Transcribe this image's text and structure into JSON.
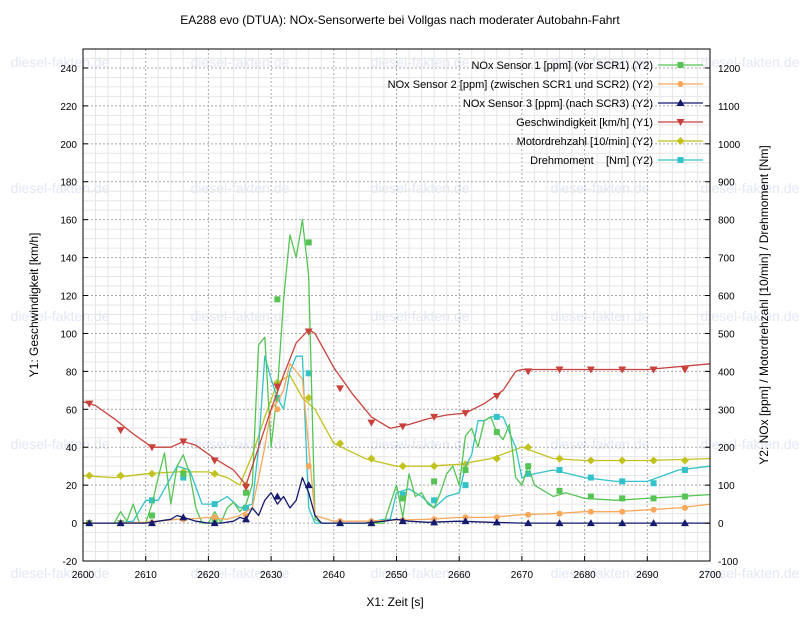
{
  "chart_data": {
    "type": "line",
    "title": "EA288 evo (DTUA): NOx-Sensorwerte bei Vollgas nach moderater Autobahn-Fahrt",
    "xlabel": "X1: Zeit [s]",
    "ylabel": "Y1: Geschwindigkeit [km/h]",
    "y2label": "Y2: NOx [ppm] / Motordrehzahl [10/min] / Drehmoment [Nm]",
    "xlim": [
      2600,
      2700
    ],
    "ylim": [
      -20,
      250
    ],
    "y2lim": [
      -100,
      1250
    ],
    "xticks": [
      "2600",
      "2610",
      "2620",
      "2630",
      "2640",
      "2650",
      "2660",
      "2670",
      "2680",
      "2690",
      "2700"
    ],
    "yticks": [
      "-20",
      "0",
      "20",
      "40",
      "60",
      "80",
      "100",
      "120",
      "140",
      "160",
      "180",
      "200",
      "220",
      "240"
    ],
    "y2ticks": [
      "-100",
      "0",
      "100",
      "200",
      "300",
      "400",
      "500",
      "600",
      "700",
      "800",
      "900",
      "1000",
      "1100",
      "1200"
    ],
    "grid": true,
    "legend_position": "top-right",
    "watermark": "diesel-fakten.de",
    "series": [
      {
        "name": "NOx Sensor 1 [ppm] (vor SCR1) (Y2)",
        "axis": "y2",
        "color": "#55c455",
        "marker": "square",
        "x": [
          2600,
          2605,
          2606,
          2607,
          2608,
          2609,
          2610,
          2611,
          2612,
          2613,
          2614,
          2615,
          2616,
          2617,
          2618,
          2619,
          2620,
          2621,
          2622,
          2623,
          2624,
          2625,
          2626,
          2627,
          2628,
          2629,
          2630,
          2631,
          2632,
          2633,
          2634,
          2635,
          2636,
          2637,
          2638,
          2639,
          2640,
          2645,
          2648,
          2649,
          2650,
          2651,
          2652,
          2653,
          2654,
          2655,
          2656,
          2657,
          2658,
          2659,
          2660,
          2661,
          2662,
          2663,
          2664,
          2665,
          2666,
          2667,
          2668,
          2669,
          2670,
          2671,
          2672,
          2673,
          2675,
          2677,
          2680,
          2685,
          2690,
          2695,
          2700
        ],
        "y": [
          0,
          0,
          30,
          5,
          50,
          0,
          0,
          50,
          120,
          185,
          50,
          150,
          180,
          130,
          40,
          0,
          0,
          30,
          0,
          40,
          55,
          30,
          50,
          100,
          470,
          490,
          200,
          350,
          590,
          760,
          700,
          800,
          650,
          10,
          0,
          0,
          0,
          0,
          0,
          50,
          100,
          15,
          130,
          70,
          80,
          50,
          40,
          80,
          130,
          150,
          100,
          230,
          250,
          200,
          270,
          280,
          240,
          220,
          260,
          120,
          100,
          150,
          100,
          90,
          70,
          80,
          65,
          60,
          65,
          70,
          75
        ],
        "markers_x": [
          2601,
          2606,
          2611,
          2616,
          2621,
          2626,
          2631,
          2636,
          2641,
          2646,
          2651,
          2656,
          2661,
          2666,
          2671,
          2676,
          2681,
          2686,
          2691,
          2696,
          2701
        ],
        "markers_y": [
          0,
          0,
          20,
          130,
          5,
          80,
          590,
          740,
          0,
          0,
          65,
          110,
          140,
          240,
          150,
          85,
          70,
          65,
          65,
          70,
          75
        ]
      },
      {
        "name": "NOx Sensor 2 [ppm] (zwischen SCR1 und SCR2) (Y2)",
        "axis": "y2",
        "color": "#f7a85b",
        "marker": "circle",
        "x": [
          2600,
          2605,
          2610,
          2612,
          2615,
          2618,
          2620,
          2623,
          2625,
          2627,
          2628,
          2629,
          2630,
          2631,
          2632,
          2633,
          2634,
          2635,
          2636,
          2637,
          2640,
          2645,
          2650,
          2655,
          2660,
          2665,
          2670,
          2675,
          2680,
          2685,
          2690,
          2695,
          2700
        ],
        "y": [
          0,
          0,
          2,
          5,
          10,
          12,
          15,
          10,
          20,
          40,
          120,
          200,
          300,
          320,
          350,
          420,
          400,
          380,
          200,
          20,
          5,
          5,
          8,
          10,
          15,
          15,
          22,
          25,
          30,
          30,
          35,
          40,
          50
        ],
        "markers_x": [
          2601,
          2606,
          2611,
          2616,
          2621,
          2626,
          2631,
          2636,
          2641,
          2646,
          2651,
          2656,
          2661,
          2666,
          2671,
          2676,
          2681,
          2686,
          2691,
          2696,
          2701
        ],
        "markers_y": [
          0,
          0,
          2,
          10,
          15,
          20,
          300,
          150,
          5,
          5,
          8,
          10,
          15,
          15,
          22,
          25,
          30,
          30,
          35,
          40,
          50
        ]
      },
      {
        "name": "NOx Sensor 3 [ppm] (nach SCR3) (Y2)",
        "axis": "y2",
        "color": "#141b6e",
        "marker": "triangle-up",
        "x": [
          2600,
          2605,
          2610,
          2612,
          2614,
          2615,
          2616,
          2617,
          2618,
          2620,
          2622,
          2624,
          2625,
          2626,
          2627,
          2628,
          2629,
          2630,
          2631,
          2632,
          2633,
          2634,
          2635,
          2636,
          2637,
          2638,
          2640,
          2645,
          2648,
          2650,
          2652,
          2655,
          2660,
          2665,
          2670,
          2675,
          2680,
          2685,
          2690,
          2695,
          2700
        ],
        "y": [
          0,
          0,
          0,
          5,
          10,
          20,
          15,
          10,
          5,
          0,
          0,
          5,
          15,
          10,
          40,
          20,
          60,
          80,
          50,
          70,
          40,
          60,
          120,
          80,
          20,
          0,
          0,
          0,
          5,
          10,
          5,
          2,
          5,
          2,
          0,
          0,
          0,
          0,
          0,
          0,
          0
        ],
        "markers_x": [
          2601,
          2606,
          2611,
          2616,
          2621,
          2626,
          2631,
          2636,
          2641,
          2646,
          2651,
          2656,
          2661,
          2666,
          2671,
          2676,
          2681,
          2686,
          2691,
          2696,
          2701
        ],
        "markers_y": [
          0,
          0,
          0,
          15,
          0,
          10,
          70,
          100,
          0,
          0,
          5,
          2,
          5,
          2,
          0,
          0,
          0,
          0,
          0,
          0,
          0
        ]
      },
      {
        "name": "Geschwindigkeit [km/h] (Y1)",
        "axis": "y1",
        "color": "#c9413d",
        "marker": "triangle-down",
        "x": [
          2600,
          2602,
          2605,
          2608,
          2611,
          2614,
          2616,
          2618,
          2621,
          2624,
          2626,
          2628,
          2630,
          2632,
          2634,
          2636,
          2637,
          2640,
          2643,
          2646,
          2649,
          2652,
          2655,
          2658,
          2661,
          2664,
          2667,
          2669,
          2670,
          2675,
          2680,
          2690,
          2700
        ],
        "y": [
          64,
          62,
          55,
          47,
          40,
          40,
          43,
          41,
          34,
          28,
          20,
          40,
          60,
          78,
          95,
          102,
          100,
          82,
          68,
          56,
          50,
          52,
          55,
          57,
          58,
          63,
          70,
          80,
          81,
          81,
          81,
          81,
          84
        ],
        "markers_x": [
          2601,
          2606,
          2611,
          2616,
          2621,
          2626,
          2631,
          2636,
          2641,
          2646,
          2651,
          2656,
          2661,
          2666,
          2671,
          2676,
          2681,
          2686,
          2691,
          2696,
          2701
        ],
        "markers_y": [
          63,
          49,
          40,
          43,
          33,
          19,
          72,
          101,
          71,
          53,
          51,
          56,
          58,
          67,
          80,
          81,
          81,
          81,
          81,
          81,
          84
        ]
      },
      {
        "name": "Motordrehzahl [10/min] (Y2)",
        "axis": "y2",
        "color": "#c2c21e",
        "marker": "diamond",
        "x": [
          2600,
          2605,
          2610,
          2615,
          2620,
          2623,
          2625,
          2627,
          2629,
          2631,
          2633,
          2635,
          2637,
          2640,
          2645,
          2650,
          2655,
          2660,
          2665,
          2670,
          2675,
          2680,
          2690,
          2700
        ],
        "y": [
          125,
          120,
          130,
          135,
          135,
          120,
          100,
          180,
          280,
          370,
          390,
          330,
          300,
          210,
          170,
          150,
          150,
          155,
          170,
          200,
          170,
          165,
          165,
          170
        ],
        "markers_x": [
          2601,
          2606,
          2611,
          2616,
          2621,
          2626,
          2631,
          2636,
          2641,
          2646,
          2651,
          2656,
          2661,
          2666,
          2671,
          2676,
          2681,
          2686,
          2691,
          2696,
          2701
        ],
        "markers_y": [
          125,
          125,
          130,
          135,
          130,
          100,
          370,
          330,
          210,
          170,
          150,
          150,
          155,
          170,
          200,
          170,
          165,
          165,
          165,
          165,
          170
        ]
      },
      {
        "name": "Drehmoment    [Nm] (Y2)",
        "axis": "y2",
        "color": "#33c2c9",
        "marker": "square",
        "x": [
          2600,
          2605,
          2608,
          2610,
          2612,
          2615,
          2617,
          2619,
          2621,
          2623,
          2625,
          2627,
          2628,
          2629,
          2630,
          2631,
          2632,
          2633,
          2634,
          2635,
          2636,
          2637,
          2640,
          2645,
          2648,
          2649,
          2650,
          2652,
          2654,
          2656,
          2658,
          2660,
          2661,
          2662,
          2663,
          2664,
          2665,
          2667,
          2669,
          2670,
          2672,
          2675,
          2680,
          2685,
          2690,
          2695,
          2700
        ],
        "y": [
          0,
          0,
          5,
          60,
          60,
          150,
          140,
          50,
          50,
          70,
          40,
          50,
          200,
          440,
          380,
          330,
          300,
          400,
          440,
          440,
          40,
          0,
          0,
          0,
          10,
          10,
          80,
          90,
          70,
          40,
          70,
          80,
          150,
          180,
          270,
          270,
          280,
          280,
          200,
          120,
          130,
          140,
          120,
          110,
          110,
          140,
          150
        ],
        "markers_x": [
          2601,
          2606,
          2611,
          2616,
          2621,
          2626,
          2631,
          2636,
          2641,
          2646,
          2651,
          2656,
          2661,
          2666,
          2671,
          2676,
          2681,
          2686,
          2691,
          2696,
          2701
        ],
        "markers_y": [
          0,
          0,
          60,
          120,
          50,
          40,
          330,
          395,
          0,
          0,
          75,
          60,
          100,
          280,
          130,
          140,
          120,
          110,
          105,
          140,
          150
        ]
      }
    ]
  }
}
